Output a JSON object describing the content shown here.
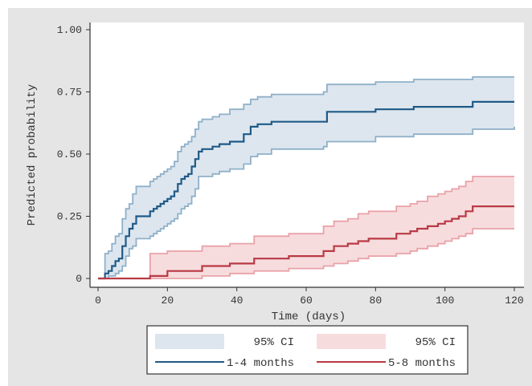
{
  "chart_data": {
    "type": "line",
    "title": "",
    "xlabel": "Time (days)",
    "ylabel": "Predicted probability",
    "xlim": [
      0,
      120
    ],
    "ylim": [
      0,
      1
    ],
    "x_ticks": [
      0,
      20,
      40,
      60,
      80,
      100,
      120
    ],
    "x_tick_labels": [
      "0",
      "20",
      "40",
      "60",
      "80",
      "100",
      "120"
    ],
    "y_ticks": [
      0,
      0.25,
      0.5,
      0.75,
      1
    ],
    "y_tick_labels": [
      "0",
      "0.25",
      "0.50",
      "0.75",
      "1.00"
    ],
    "grid": false,
    "legend_position": "bottom",
    "colors": {
      "background": "#e5e5e5",
      "plot_background": "#ffffff",
      "series1_line": "#1f5a87",
      "series1_ci_fill": "#dde6ee",
      "series1_ci_edge": "#8fb0c9",
      "series2_line": "#b83a44",
      "series2_ci_fill": "#f7dcde",
      "series2_ci_edge": "#e9a2a8"
    },
    "legend": [
      {
        "label": "95% CI",
        "kind": "band",
        "series": 0
      },
      {
        "label": "95% CI",
        "kind": "band",
        "series": 1
      },
      {
        "label": "1-4 months",
        "kind": "line",
        "series": 0
      },
      {
        "label": "5-8 months",
        "kind": "line",
        "series": 1
      }
    ],
    "series": [
      {
        "name": "1-4 months",
        "step": true,
        "x": [
          0,
          1,
          2,
          3,
          4,
          5,
          6,
          7,
          8,
          9,
          10,
          11,
          15,
          16,
          17,
          18,
          19,
          20,
          21,
          22,
          23,
          24,
          25,
          26,
          27,
          28,
          29,
          30,
          33,
          35,
          38,
          42,
          44,
          46,
          50,
          65,
          66,
          80,
          91,
          108,
          120
        ],
        "y": [
          0,
          0,
          0.02,
          0.03,
          0.05,
          0.07,
          0.08,
          0.13,
          0.17,
          0.2,
          0.22,
          0.25,
          0.27,
          0.28,
          0.29,
          0.3,
          0.31,
          0.32,
          0.33,
          0.35,
          0.38,
          0.4,
          0.41,
          0.42,
          0.45,
          0.48,
          0.51,
          0.52,
          0.53,
          0.54,
          0.55,
          0.58,
          0.61,
          0.62,
          0.63,
          0.63,
          0.67,
          0.68,
          0.69,
          0.71,
          0.71
        ],
        "lower": [
          0,
          0,
          0,
          0.01,
          0.01,
          0.02,
          0.03,
          0.05,
          0.09,
          0.12,
          0.13,
          0.16,
          0.17,
          0.18,
          0.19,
          0.2,
          0.21,
          0.22,
          0.23,
          0.24,
          0.26,
          0.28,
          0.29,
          0.3,
          0.33,
          0.36,
          0.41,
          0.41,
          0.42,
          0.43,
          0.44,
          0.46,
          0.49,
          0.5,
          0.52,
          0.53,
          0.55,
          0.57,
          0.58,
          0.6,
          0.61
        ],
        "upper": [
          0,
          0,
          0.1,
          0.11,
          0.14,
          0.17,
          0.18,
          0.24,
          0.28,
          0.3,
          0.34,
          0.37,
          0.39,
          0.4,
          0.41,
          0.42,
          0.43,
          0.44,
          0.45,
          0.47,
          0.51,
          0.53,
          0.54,
          0.55,
          0.57,
          0.6,
          0.63,
          0.64,
          0.65,
          0.66,
          0.68,
          0.7,
          0.72,
          0.73,
          0.74,
          0.75,
          0.78,
          0.79,
          0.8,
          0.81,
          0.81
        ]
      },
      {
        "name": "5-8 months",
        "step": true,
        "x": [
          0,
          15,
          20,
          30,
          38,
          45,
          55,
          65,
          68,
          72,
          75,
          78,
          86,
          90,
          92,
          95,
          98,
          100,
          102,
          104,
          106,
          108,
          120
        ],
        "y": [
          0,
          0.01,
          0.03,
          0.05,
          0.06,
          0.08,
          0.09,
          0.11,
          0.13,
          0.14,
          0.15,
          0.16,
          0.18,
          0.19,
          0.2,
          0.21,
          0.22,
          0.23,
          0.24,
          0.25,
          0.27,
          0.29,
          0.29
        ],
        "lower": [
          0,
          0,
          0,
          0.01,
          0.02,
          0.03,
          0.04,
          0.05,
          0.06,
          0.07,
          0.08,
          0.09,
          0.1,
          0.11,
          0.12,
          0.13,
          0.14,
          0.15,
          0.16,
          0.17,
          0.18,
          0.2,
          0.2
        ],
        "upper": [
          0,
          0.1,
          0.11,
          0.13,
          0.14,
          0.17,
          0.18,
          0.21,
          0.23,
          0.24,
          0.26,
          0.27,
          0.29,
          0.3,
          0.31,
          0.33,
          0.34,
          0.35,
          0.36,
          0.37,
          0.39,
          0.41,
          0.41
        ]
      }
    ]
  }
}
